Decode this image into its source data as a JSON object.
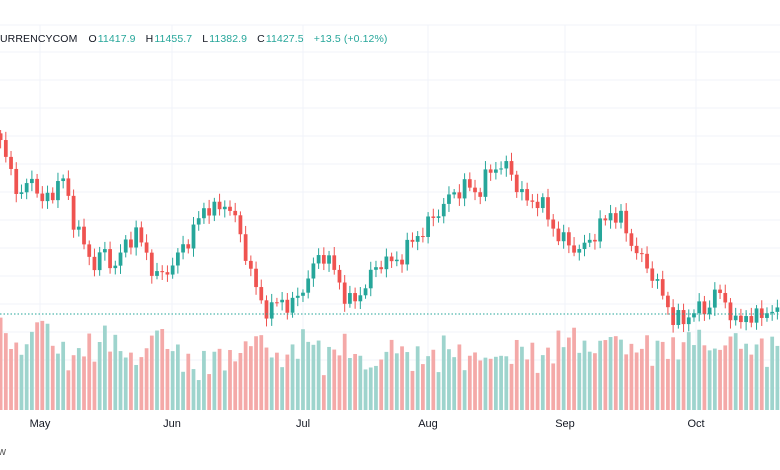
{
  "legend": {
    "symbol": "URRENCYCOM",
    "open_label": "O",
    "open": "11417.9",
    "high_label": "H",
    "high": "11455.7",
    "low_label": "L",
    "low": "11382.9",
    "close_label": "C",
    "close": "11427.5",
    "change": "+13.5 (+0.12%)"
  },
  "credit": "w",
  "colors": {
    "up": "#26a69a",
    "down": "#ef5350",
    "up_volume": "#9ed4cd",
    "down_volume": "#f4a9a8",
    "price_line": "#26a69a"
  },
  "chart_data": {
    "type": "candlestick",
    "x_tick_labels": [
      "May",
      "Jun",
      "Jul",
      "Aug",
      "Sep",
      "Oct"
    ],
    "grid": true,
    "legend_position": "top-left",
    "ohlc_last": {
      "open": 11417.9,
      "high": 11455.7,
      "low": 11382.9,
      "close": 11427.5,
      "change": 13.5,
      "change_pct": 0.12
    },
    "close_path": [
      12240,
      12080,
      11920,
      12060,
      11880,
      11960,
      12040,
      11800,
      11640,
      11520,
      11600,
      11500,
      11640,
      11720,
      11600,
      11440,
      11480,
      11560,
      11660,
      11780,
      11880,
      11840,
      11900,
      11720,
      11520,
      11300,
      11240,
      11320,
      11260,
      11360,
      11480,
      11600,
      11520,
      11360,
      11280,
      11380,
      11480,
      11560,
      11520,
      11600,
      11680,
      11740,
      11820,
      11900,
      11960,
      12000,
      11940,
      12060,
      12120,
      12100,
      11980,
      11880,
      11920,
      11780,
      11680,
      11640,
      11600,
      11680,
      11760,
      11840,
      11780,
      11640,
      11540,
      11460,
      11320,
      11200,
      11180,
      11260,
      11240,
      11360,
      11300,
      11160,
      11220,
      11200,
      11250,
      11230
    ],
    "volume_path": [
      9,
      7,
      6,
      8,
      10,
      7,
      6,
      5,
      7,
      6,
      8,
      7,
      6,
      5,
      6,
      9,
      7,
      6,
      5,
      4,
      5,
      6,
      5,
      6,
      7,
      8,
      6,
      5,
      6,
      7,
      8,
      5,
      6,
      7,
      6,
      5,
      4,
      6,
      7,
      6,
      5,
      6,
      5,
      7,
      6,
      5,
      6,
      5,
      6,
      5,
      7,
      6,
      5,
      6,
      7,
      8,
      7,
      6,
      7,
      8,
      7,
      6,
      7,
      6,
      7,
      6,
      7,
      8,
      7,
      6,
      7,
      8,
      6,
      7,
      6,
      7
    ]
  }
}
